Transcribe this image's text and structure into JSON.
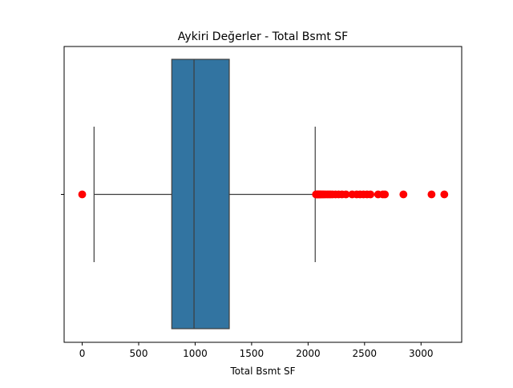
{
  "chart_data": {
    "type": "boxplot",
    "title": "Aykiri Değerler - Total Bsmt SF",
    "xlabel": "Total Bsmt SF",
    "ylabel": "",
    "xlim": [
      -160,
      3360
    ],
    "xticks": [
      0,
      500,
      1000,
      1500,
      2000,
      2500,
      3000
    ],
    "xtick_labels": [
      "0",
      "500",
      "1000",
      "1500",
      "2000",
      "2500",
      "3000"
    ],
    "orientation": "horizontal",
    "grid": false,
    "box": {
      "whisker_low": 105,
      "q1": 793,
      "median": 990,
      "q3": 1302,
      "whisker_high": 2063,
      "color": "#3274a1"
    },
    "outliers": [
      0,
      2070,
      2077,
      2084,
      2090,
      2096,
      2104,
      2110,
      2119,
      2130,
      2140,
      2154,
      2170,
      2185,
      2200,
      2217,
      2243,
      2270,
      2300,
      2335,
      2390,
      2430,
      2460,
      2490,
      2522,
      2552,
      2620,
      2662,
      2680,
      2844,
      3093,
      3206
    ],
    "outlier_color": "#ff0000"
  }
}
